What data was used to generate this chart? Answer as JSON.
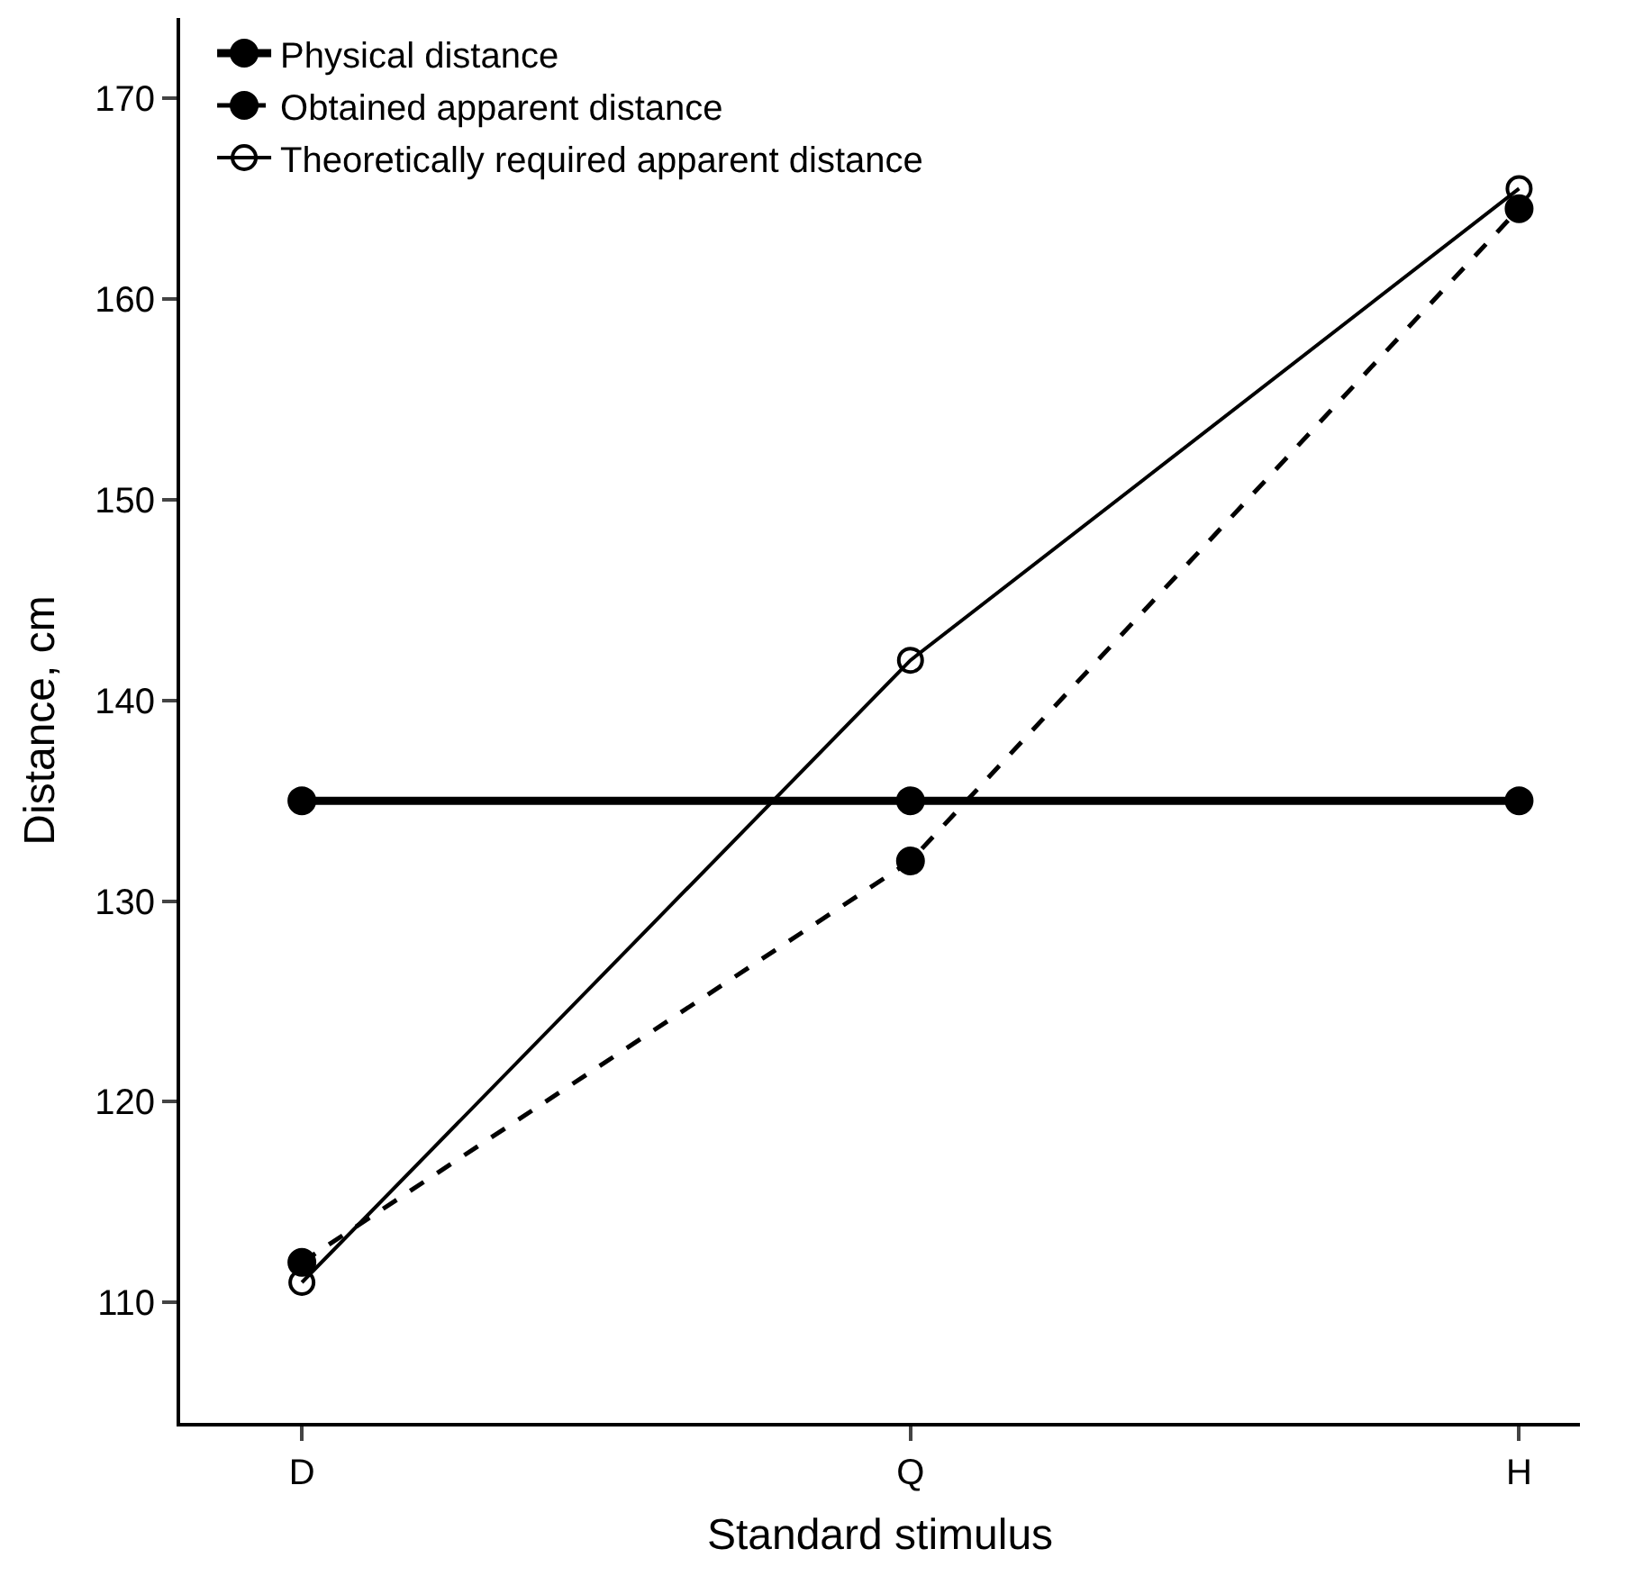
{
  "chart_data": {
    "type": "line",
    "xlabel": "Standard stimulus",
    "ylabel": "Distance, cm",
    "categories": [
      "D",
      "Q",
      "H"
    ],
    "series": [
      {
        "name": "Physical distance",
        "color": "#000000",
        "line_style": "solid",
        "values": [
          135,
          135,
          135
        ]
      },
      {
        "name": "Obtained apparent distance",
        "color": "#000000",
        "line_style": "dashed",
        "values": [
          112,
          132,
          164.5
        ]
      },
      {
        "name": "Theoretically required apparent distance",
        "color": "#000000",
        "line_style": "solid",
        "values": [
          111,
          142,
          165.5
        ]
      }
    ],
    "ylim": [
      104,
      174
    ],
    "yticks": [
      110,
      120,
      130,
      140,
      150,
      160,
      170
    ],
    "legend": "top left",
    "marker": "circle"
  }
}
